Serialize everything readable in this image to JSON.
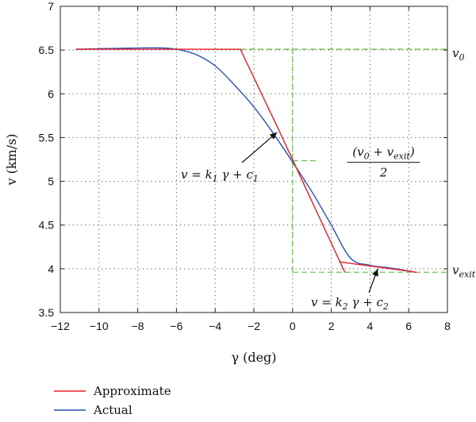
{
  "chart_data": {
    "type": "line",
    "xlabel": "γ (deg)",
    "ylabel": "v (km/s)",
    "xlim": [
      -12,
      8
    ],
    "ylim": [
      3.5,
      7
    ],
    "x_ticks": [
      "−12",
      "−10",
      "−8",
      "−6",
      "−4",
      "−2",
      "0",
      "2",
      "4",
      "6",
      "8"
    ],
    "y_ticks": [
      "3.5",
      "4",
      "4.5",
      "5",
      "5.5",
      "6",
      "6.5",
      "7"
    ],
    "grid": true,
    "legend_position": "bottom-left",
    "colors": {
      "approximate": "#e8202a",
      "actual": "#2b4fb8",
      "reference": "#6cc24a"
    },
    "series": [
      {
        "name": "Approximate",
        "color": "#e8202a",
        "segments": [
          [
            [
              -11.2,
              6.51
            ],
            [
              -2.7,
              6.51
            ],
            [
              -0.7,
              5.58
            ],
            [
              2.7,
              3.96
            ]
          ],
          [
            [
              2.4,
              4.08
            ],
            [
              6.4,
              3.96
            ]
          ]
        ]
      },
      {
        "name": "Actual",
        "color": "#2b4fb8",
        "x": [
          -11.2,
          -9,
          -7,
          -6,
          -5,
          -4,
          -3,
          -2,
          -1,
          0,
          1,
          2,
          3,
          4,
          5,
          6,
          6.4
        ],
        "y": [
          6.51,
          6.52,
          6.525,
          6.51,
          6.45,
          6.32,
          6.1,
          5.85,
          5.55,
          5.22,
          4.88,
          4.5,
          4.12,
          4.04,
          4.01,
          3.975,
          3.96
        ]
      }
    ],
    "reference_lines": [
      {
        "kind": "horizontal",
        "y": 6.51,
        "x_from": -2.7,
        "x_to": 8,
        "label": "v0",
        "label_main": "v",
        "label_sub": "0"
      },
      {
        "kind": "horizontal",
        "y": 3.96,
        "x_from": 0,
        "x_to": 8,
        "label": "vexit",
        "label_main": "v",
        "label_sub": "exit"
      },
      {
        "kind": "vertical",
        "x": 0,
        "y_from": 3.96,
        "y_to": 6.51
      },
      {
        "kind": "horizontal",
        "y": 5.235,
        "x_from": 0,
        "x_to": 1.2,
        "label": "(v0 + vexit)/2"
      }
    ],
    "annotations": [
      {
        "text": "v = k1 γ + c1",
        "parts": [
          "v = k",
          "1",
          " γ + c",
          "1"
        ],
        "arrow_to": [
          -0.8,
          5.56
        ]
      },
      {
        "text": "v = k2 γ + c2",
        "parts": [
          "v = k",
          "2",
          " γ + c",
          "2"
        ],
        "arrow_to": [
          4.4,
          4.0
        ]
      },
      {
        "text": "(v0 + vexit)/2",
        "numerator": [
          "(v",
          "0",
          " + v",
          "exit",
          ")"
        ],
        "denominator": "2"
      }
    ]
  }
}
